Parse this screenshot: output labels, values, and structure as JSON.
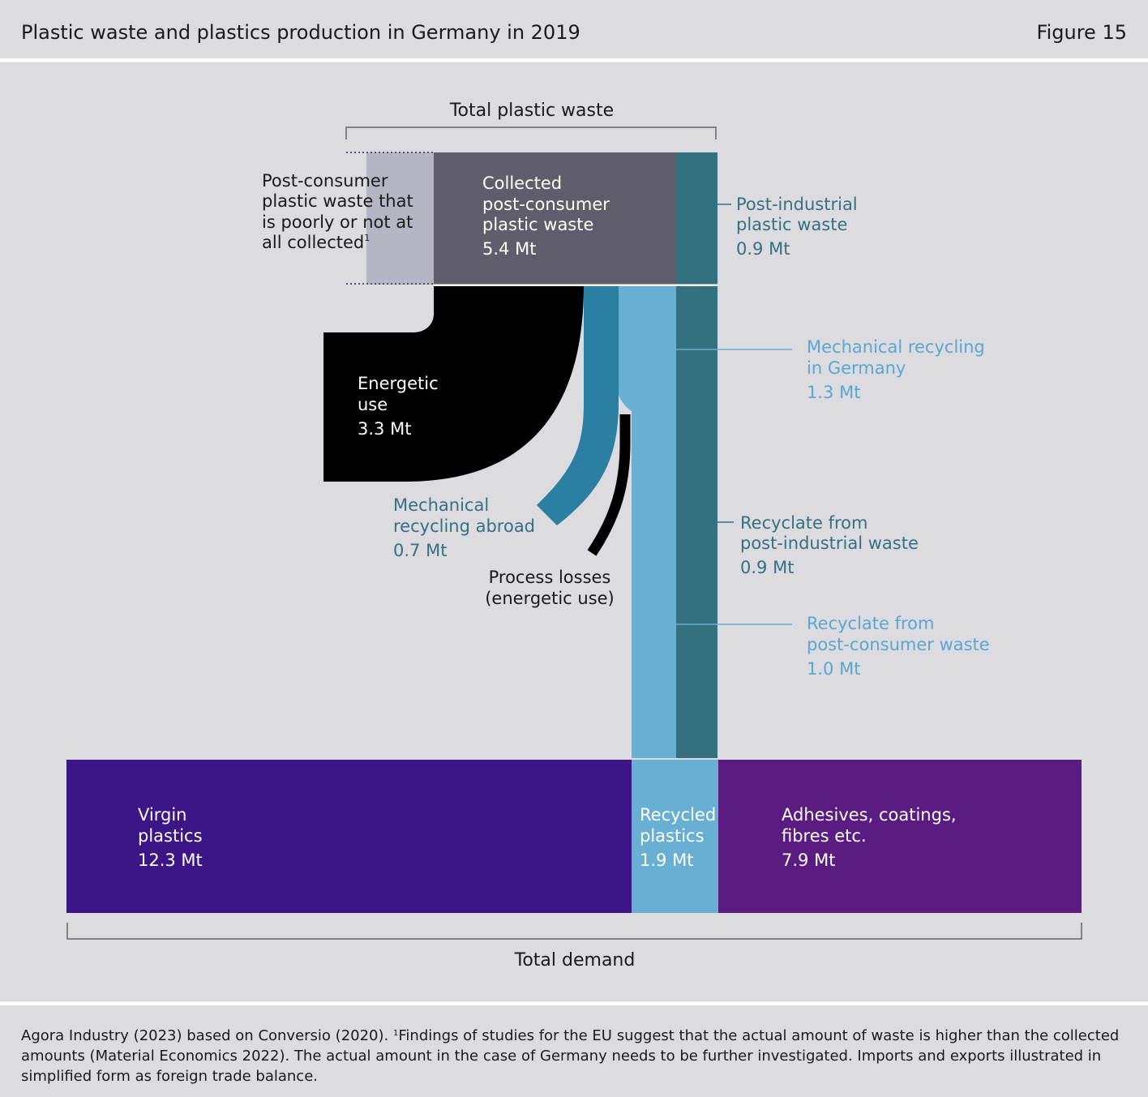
{
  "header": {
    "title": "Plastic waste and plastics production in Germany in 2019",
    "figure": "Figure 15"
  },
  "diagram": {
    "total_waste_label": "Total plastic waste",
    "total_demand_label": "Total demand",
    "poorly_collected": {
      "lines": [
        "Post-consumer",
        "plastic waste that",
        "is poorly or not at",
        "all collected"
      ],
      "footnote_mark": "1"
    },
    "collected": {
      "lines": [
        "Collected",
        "post-consumer",
        "plastic waste"
      ],
      "value": "5.4 Mt"
    },
    "post_industrial": {
      "lines": [
        "Post-industrial",
        "plastic waste"
      ],
      "value": "0.9 Mt"
    },
    "energetic": {
      "lines": [
        "Energetic",
        "use"
      ],
      "value": "3.3 Mt"
    },
    "mech_germany": {
      "lines": [
        "Mechanical recycling",
        "in Germany"
      ],
      "value": "1.3 Mt"
    },
    "mech_abroad": {
      "lines": [
        "Mechanical",
        "recycling abroad"
      ],
      "value": "0.7 Mt"
    },
    "process_losses": {
      "lines": [
        "Process losses",
        "(energetic use)"
      ]
    },
    "recyclate_industrial": {
      "lines": [
        "Recyclate from",
        "post-industrial waste"
      ],
      "value": "0.9 Mt"
    },
    "recyclate_consumer": {
      "lines": [
        "Recyclate from",
        "post-consumer waste"
      ],
      "value": "1.0 Mt"
    },
    "virgin": {
      "lines": [
        "Virgin",
        "plastics"
      ],
      "value": "12.3 Mt"
    },
    "recycled": {
      "lines": [
        "Recycled",
        "plastics"
      ],
      "value": "1.9 Mt"
    },
    "adhesives": {
      "lines": [
        "Adhesives, coatings,",
        "fibres etc."
      ],
      "value": "7.9 Mt"
    }
  },
  "colors": {
    "background": "#dcdbe0",
    "collected": "#5f5c6b",
    "poorly_collected": "#b6b5c3",
    "post_industrial": "#34717f",
    "energetic": "#000000",
    "mech_abroad": "#2b7fa0",
    "mech_germany": "#67b0d4",
    "virgin": "#3c1686",
    "adhesives": "#5b1c82",
    "teal_text": "#34717f",
    "light_blue_text": "#5aa7d0"
  },
  "footer": {
    "text_a": "Agora Industry (2023) based on Conversio (2020).",
    "footnote_mark": "1",
    "text_b": "Findings of studies for the EU suggest that the actual amount of waste is higher than the collected amounts (Material Economics 2022). The actual amount in the case of Germany needs to be further investigated. Imports and ex­ports illustrated in simplified form as foreign trade balance."
  }
}
